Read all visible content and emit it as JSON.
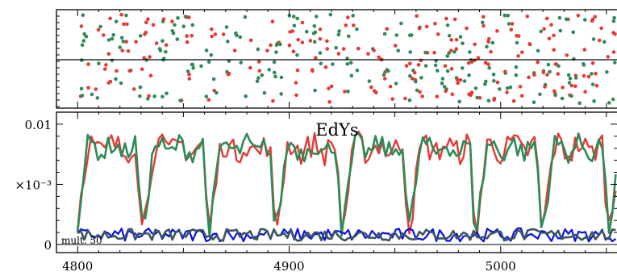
{
  "chart_data": [
    {
      "type": "scatter",
      "panel": "top",
      "title": "",
      "xlabel": "",
      "ylabel": "",
      "xlim": [
        4790,
        5055
      ],
      "series": [
        {
          "color": "#e53935"
        },
        {
          "color": "#2e8b57"
        }
      ],
      "grid": false
    },
    {
      "type": "line",
      "panel": "bottom",
      "title": "EdYs",
      "annotation": "mult. 50",
      "xlabel": "",
      "ylabel": "",
      "xlim": [
        4790,
        5055
      ],
      "ylim": [
        0,
        0.011
      ],
      "x_ticks": [
        "4800",
        "4900",
        "5000"
      ],
      "x_tick_values": [
        4800,
        4900,
        5000
      ],
      "y_ticks": [
        "0.01",
        "×10⁻³",
        "0"
      ],
      "y_tick_values": [
        0.01,
        0.005,
        0
      ],
      "cycle_length": 31.5,
      "cycle_start": 4767,
      "upper_level_approx": 0.008,
      "dip_level_approx": 0.0015,
      "series": [
        {
          "color": "#e53935",
          "role": "upper"
        },
        {
          "color": "#2e8b57",
          "role": "upper"
        },
        {
          "color": "#0a10e8",
          "role": "residual",
          "level_approx": 0.0008
        },
        {
          "color": "#3b5660",
          "role": "residual",
          "level_approx": 0.0008
        }
      ],
      "grid": false
    }
  ]
}
